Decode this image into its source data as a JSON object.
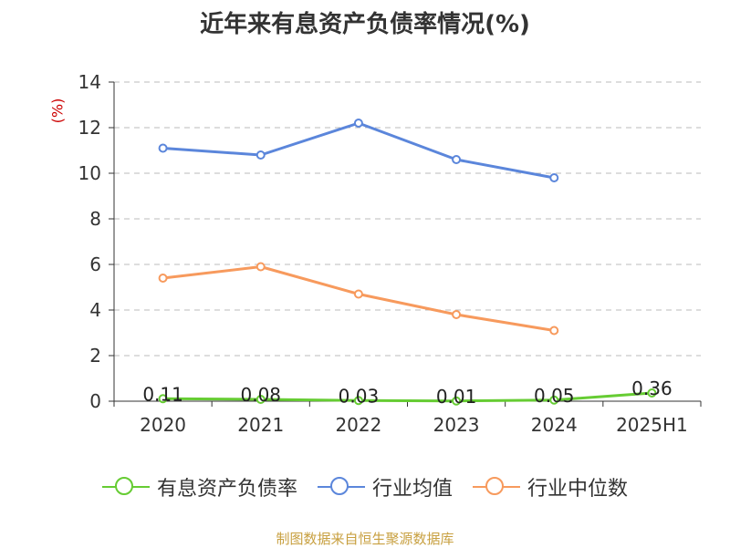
{
  "title": "近年来有息资产负债率情况(%)",
  "unit_label": "(%)",
  "source": "制图数据来自恒生聚源数据库",
  "colors": {
    "series1": "#66cc33",
    "series2": "#5b86db",
    "series3": "#f79a5d",
    "grid": "#bbbbbb",
    "axis": "#333333",
    "unit": "#cc0000",
    "source": "#c8a040"
  },
  "chart_data": {
    "type": "line",
    "categories": [
      "2020",
      "2021",
      "2022",
      "2023",
      "2024",
      "2025H1"
    ],
    "ylim": [
      0,
      14
    ],
    "yticks": [
      "0",
      "2",
      "4",
      "6",
      "8",
      "10",
      "12",
      "14"
    ],
    "grid": true,
    "legend_position": "bottom",
    "series": [
      {
        "name": "有息资产负债率",
        "values": [
          0.11,
          0.08,
          0.03,
          0.01,
          0.05,
          0.36
        ],
        "labels": [
          "0.11",
          "0.08",
          "0.03",
          "0.01",
          "0.05",
          "0.36"
        ]
      },
      {
        "name": "行业均值",
        "values": [
          11.1,
          10.8,
          12.2,
          10.6,
          9.8,
          null
        ]
      },
      {
        "name": "行业中位数",
        "values": [
          5.4,
          5.9,
          4.7,
          3.8,
          3.1,
          null
        ]
      }
    ]
  }
}
